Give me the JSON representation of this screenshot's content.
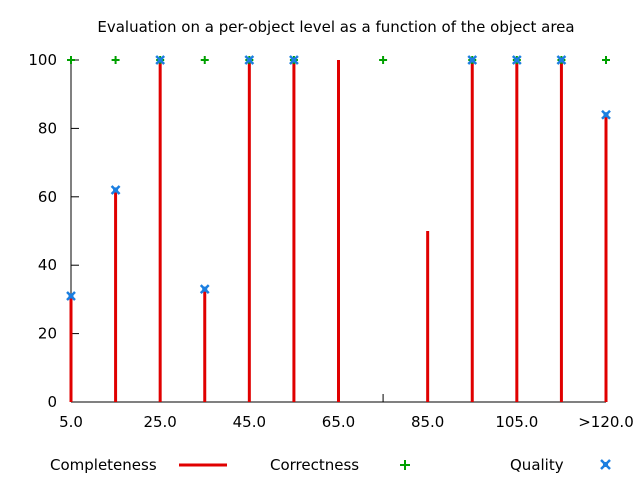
{
  "chart_data": {
    "type": "bar",
    "title": "Evaluation on a per-object level as a function of the object area",
    "xlabel": "",
    "ylabel": "",
    "ylim": [
      0,
      100
    ],
    "yticks": [
      "0",
      "20",
      "40",
      "60",
      "80",
      "100"
    ],
    "xticks": [
      "5.0",
      "25.0",
      "45.0",
      "65.0",
      "85.0",
      "105.0",
      ">120.0"
    ],
    "grid": false,
    "legend_position": "bottom",
    "colors": {
      "completeness": "#e00000",
      "correctness": "#00a000",
      "quality": "#1b7ee0"
    },
    "x": [
      "5.0",
      "15.0",
      "25.0",
      "35.0",
      "45.0",
      "55.0",
      "65.0",
      "75.0",
      "85.0",
      "95.0",
      "105.0",
      "115.0",
      ">120.0"
    ],
    "series": [
      {
        "name": "Completeness",
        "values": [
          31,
          62,
          100,
          33,
          100,
          100,
          100,
          null,
          50,
          100,
          100,
          100,
          84
        ]
      },
      {
        "name": "Correctness",
        "values": [
          100,
          100,
          100,
          100,
          100,
          100,
          null,
          100,
          null,
          100,
          100,
          100,
          100
        ]
      },
      {
        "name": "Quality",
        "values": [
          31,
          62,
          100,
          33,
          100,
          100,
          null,
          null,
          null,
          100,
          100,
          100,
          84
        ]
      }
    ]
  }
}
